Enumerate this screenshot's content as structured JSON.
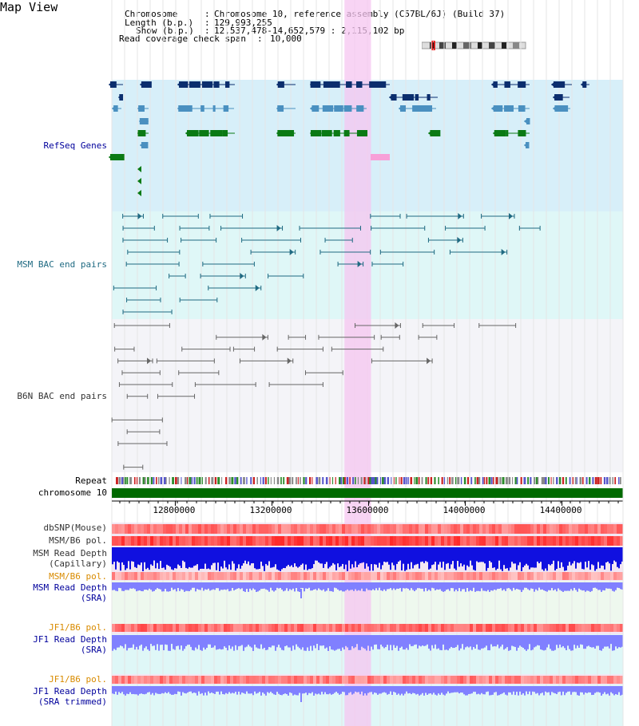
{
  "map_title": "Map View",
  "header": {
    "chromosome_key": "Chromosome",
    "chromosome_val": "Chromosome 10, reference assembly (C57BL/6J) (Build 37)",
    "length_key": "Length (b.p.)",
    "length_val": "129,993,255",
    "show_key": "Show (b.p.)",
    "show_val": "12,537,478-14,652,579 : 2,115,102 bp",
    "coverage_key": "Read coverage check span",
    "coverage_val": "10,000"
  },
  "tracks": {
    "refseq": "RefSeq Genes",
    "msm_bac": "MSM BAC end pairs",
    "b6n_bac": "B6N BAC end pairs",
    "repeat": "Repeat",
    "chromosome": "chromosome 10",
    "dbsnp": "dbSNP(Mouse)",
    "msm_b6_pol_1": "MSM/B6 pol.",
    "msm_read_depth_cap_1": "MSM Read Depth",
    "msm_read_depth_cap_2": "(Capillary)",
    "msm_b6_pol_2": "MSM/B6 pol.",
    "msm_read_depth_sra_1": "MSM Read Depth",
    "msm_read_depth_sra_2": "(SRA)",
    "jf1_b6_pol_1": "JF1/B6 pol.",
    "jf1_read_depth_1": "JF1 Read Depth",
    "jf1_read_depth_2": "(SRA)",
    "jf1_b6_pol_2": "JF1/B6 pol.",
    "jf1_read_depth_trim_1": "JF1 Read Depth",
    "jf1_read_depth_trim_2": "(SRA trimmed)"
  },
  "axis": {
    "ticks": [
      12800000,
      13200000,
      13600000,
      14000000,
      14400000
    ],
    "range": [
      12537478,
      14652579
    ],
    "highlight": [
      13500000,
      13610000
    ]
  },
  "colors": {
    "refseq_bg": "#d7eff9",
    "msm_bg": "#dff7f7",
    "b6n_bg": "#f4f4f8",
    "highlight": "#f5c6f0",
    "gene_dark": "#0b2e6e",
    "gene_mid": "#4a90c0",
    "gene_green": "#0a7a14",
    "chrom_bar": "#006a00",
    "depth_blue": "#1010e0",
    "depth_light": "#8080ff",
    "pol_red": "#f07070",
    "label_orange": "#d98b00"
  }
}
